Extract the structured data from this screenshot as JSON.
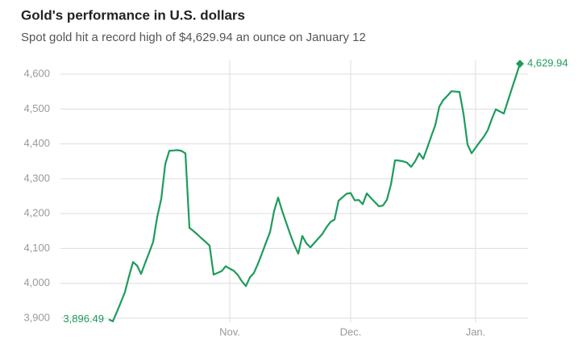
{
  "chart_data": {
    "type": "line",
    "title": "Gold's performance in U.S. dollars",
    "subtitle": "Spot gold hit a record high of $4,629.94 an ounce on January 12",
    "categories": [
      null,
      null,
      null,
      null,
      null,
      null,
      null,
      null,
      null,
      null,
      null,
      null,
      null,
      null,
      null,
      null,
      null,
      null,
      null,
      null,
      null,
      null,
      null,
      null,
      null,
      null,
      null,
      null,
      null,
      null,
      "Nov.",
      null,
      null,
      null,
      null,
      null,
      null,
      null,
      null,
      null,
      null,
      null,
      null,
      null,
      null,
      null,
      null,
      null,
      null,
      null,
      null,
      null,
      null,
      null,
      null,
      null,
      null,
      null,
      null,
      null,
      "Dec.",
      null,
      null,
      null,
      null,
      null,
      null,
      null,
      null,
      null,
      null,
      null,
      null,
      null,
      null,
      null,
      null,
      null,
      null,
      null,
      null,
      null,
      null,
      null,
      null,
      null,
      null,
      null,
      null,
      null,
      null,
      "Jan.",
      null,
      null,
      null,
      null,
      null,
      null,
      null,
      null,
      null,
      null,
      null
    ],
    "values": [
      3896.49,
      3891,
      3918,
      3946,
      3975,
      4020,
      4061,
      4051,
      4027,
      4058,
      4088,
      4119,
      4190,
      4242,
      4342,
      4380,
      4381,
      4382,
      4380,
      4373,
      4159,
      4150,
      4140,
      4129,
      4119,
      4108,
      4025,
      4030,
      4035,
      4049,
      4042,
      4036,
      4024,
      4006,
      3992,
      4017,
      4030,
      4056,
      4086,
      4117,
      4147,
      4207,
      4246,
      4208,
      4174,
      4141,
      4110,
      4085,
      4136,
      4115,
      4103,
      4116,
      4129,
      4142,
      4161,
      4176,
      4183,
      4237,
      4247,
      4257,
      4259,
      4238,
      4239,
      4227,
      4258,
      4245,
      4233,
      4221,
      4223,
      4240,
      4284,
      4353,
      4352,
      4350,
      4346,
      4334,
      4350,
      4373,
      4357,
      4389,
      4422,
      4454,
      4507,
      4526,
      4538,
      4551,
      4550,
      4549,
      4486,
      4398,
      4373,
      4389,
      4405,
      4420,
      4439,
      4471,
      4499,
      4493,
      4487,
      4523,
      4559,
      4594,
      4629.94
    ],
    "value_labels": [
      "3,896.49",
      null,
      null,
      null,
      null,
      null,
      null,
      null,
      null,
      null,
      null,
      null,
      null,
      null,
      null,
      null,
      null,
      null,
      null,
      null,
      null,
      null,
      null,
      null,
      null,
      null,
      null,
      null,
      null,
      null,
      null,
      null,
      null,
      null,
      null,
      null,
      null,
      null,
      null,
      null,
      null,
      null,
      null,
      null,
      null,
      null,
      null,
      null,
      null,
      null,
      null,
      null,
      null,
      null,
      null,
      null,
      null,
      null,
      null,
      null,
      null,
      null,
      null,
      null,
      null,
      null,
      null,
      null,
      null,
      null,
      null,
      null,
      null,
      null,
      null,
      null,
      null,
      null,
      null,
      null,
      null,
      null,
      null,
      null,
      null,
      null,
      null,
      null,
      null,
      null,
      null,
      null,
      null,
      null,
      null,
      null,
      null,
      null,
      null,
      null,
      null,
      null,
      "4,629.94"
    ],
    "color": "#1e9b5c",
    "ylim": [
      3890,
      4650
    ],
    "yticks": [
      {
        "value": 3900,
        "label": "3,900"
      },
      {
        "value": 4000,
        "label": "4,000"
      },
      {
        "value": 4100,
        "label": "4,100"
      },
      {
        "value": 4200,
        "label": "4,200"
      },
      {
        "value": 4300,
        "label": "4,300"
      },
      {
        "value": 4400,
        "label": "4,400"
      },
      {
        "value": 4500,
        "label": "4,500"
      },
      {
        "value": 4600,
        "label": "4,600"
      }
    ],
    "grid": true
  }
}
